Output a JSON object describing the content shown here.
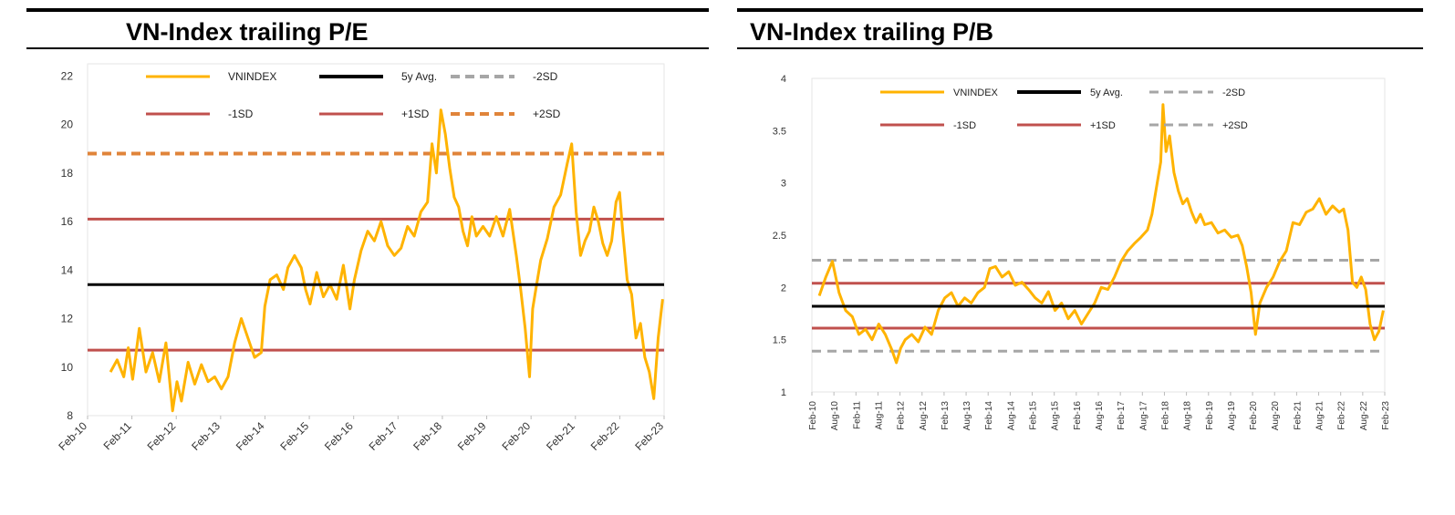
{
  "left_panel": {
    "title": "VN-Index trailing P/E"
  },
  "right_panel": {
    "title": "VN-Index trailing P/B"
  },
  "chart_data": [
    {
      "type": "line",
      "title": "VN-Index trailing P/E",
      "x_ticks": [
        "Feb-10",
        "Feb-11",
        "Feb-12",
        "Feb-13",
        "Feb-14",
        "Feb-15",
        "Feb-16",
        "Feb-17",
        "Feb-18",
        "Feb-19",
        "Feb-20",
        "Feb-21",
        "Feb-22",
        "Feb-23"
      ],
      "x_range": [
        2010.0833,
        2023.0833
      ],
      "y_ticks": [
        8,
        10,
        12,
        14,
        16,
        18,
        20,
        22
      ],
      "ylim": [
        8,
        22.5
      ],
      "legend": [
        "VNINDEX",
        "5y Avg.",
        "-2SD",
        "-1SD",
        "+1SD",
        "+2SD"
      ],
      "colors": {
        "vnindex": "#ffb300",
        "avg": "#000000",
        "sd1": "#c0504d",
        "minus2sd": "#a6a6a6",
        "plus2sd": "#e0843a"
      },
      "reference_lines": {
        "avg": 13.4,
        "minus1sd": 10.7,
        "plus1sd": 16.1,
        "plus2sd": 18.8
      },
      "series": [
        {
          "name": "VNINDEX",
          "x": [
            2010.6,
            2010.75,
            2010.9,
            2011.0,
            2011.1,
            2011.25,
            2011.4,
            2011.55,
            2011.7,
            2011.85,
            2012.0,
            2012.1,
            2012.2,
            2012.35,
            2012.5,
            2012.65,
            2012.8,
            2012.95,
            2013.1,
            2013.25,
            2013.4,
            2013.55,
            2013.7,
            2013.85,
            2014.0,
            2014.08,
            2014.2,
            2014.35,
            2014.5,
            2014.6,
            2014.75,
            2014.9,
            2015.0,
            2015.1,
            2015.25,
            2015.4,
            2015.55,
            2015.7,
            2015.85,
            2016.0,
            2016.1,
            2016.25,
            2016.4,
            2016.55,
            2016.7,
            2016.85,
            2017.0,
            2017.15,
            2017.3,
            2017.45,
            2017.6,
            2017.75,
            2017.85,
            2017.95,
            2018.05,
            2018.15,
            2018.25,
            2018.35,
            2018.45,
            2018.55,
            2018.65,
            2018.75,
            2018.85,
            2019.0,
            2019.15,
            2019.3,
            2019.45,
            2019.6,
            2019.75,
            2019.85,
            2019.95,
            2020.05,
            2020.12,
            2020.2,
            2020.3,
            2020.45,
            2020.6,
            2020.75,
            2020.9,
            2021.0,
            2021.1,
            2021.2,
            2021.3,
            2021.4,
            2021.5,
            2021.6,
            2021.7,
            2021.8,
            2021.9,
            2022.0,
            2022.08,
            2022.15,
            2022.25,
            2022.35,
            2022.45,
            2022.55,
            2022.65,
            2022.75,
            2022.85,
            2022.95,
            2023.05
          ],
          "y": [
            9.8,
            10.3,
            9.6,
            10.8,
            9.5,
            11.6,
            9.8,
            10.6,
            9.4,
            11.0,
            8.2,
            9.4,
            8.6,
            10.2,
            9.3,
            10.1,
            9.4,
            9.6,
            9.1,
            9.6,
            11.0,
            12.0,
            11.2,
            10.4,
            10.6,
            12.5,
            13.6,
            13.8,
            13.2,
            14.1,
            14.6,
            14.1,
            13.2,
            12.6,
            13.9,
            12.9,
            13.4,
            12.8,
            14.2,
            12.4,
            13.6,
            14.8,
            15.6,
            15.2,
            16.0,
            15.0,
            14.6,
            14.9,
            15.8,
            15.4,
            16.4,
            16.8,
            19.2,
            18.0,
            20.6,
            19.6,
            18.2,
            17.0,
            16.6,
            15.6,
            15.0,
            16.2,
            15.4,
            15.8,
            15.4,
            16.2,
            15.4,
            16.5,
            14.6,
            13.2,
            11.6,
            9.6,
            12.4,
            13.3,
            14.4,
            15.3,
            16.6,
            17.1,
            18.4,
            19.2,
            16.4,
            14.6,
            15.2,
            15.6,
            16.6,
            16.0,
            15.1,
            14.6,
            15.2,
            16.8,
            17.2,
            15.6,
            13.6,
            13.0,
            11.2,
            11.8,
            10.4,
            9.8,
            8.7,
            11.2,
            12.8
          ]
        }
      ]
    },
    {
      "type": "line",
      "title": "VN-Index trailing P/B",
      "x_ticks": [
        "Feb-10",
        "Aug-10",
        "Feb-11",
        "Aug-11",
        "Feb-12",
        "Aug-12",
        "Feb-13",
        "Aug-13",
        "Feb-14",
        "Aug-14",
        "Feb-15",
        "Aug-15",
        "Feb-16",
        "Aug-16",
        "Feb-17",
        "Aug-17",
        "Feb-18",
        "Aug-18",
        "Feb-19",
        "Aug-19",
        "Feb-20",
        "Aug-20",
        "Feb-21",
        "Aug-21",
        "Feb-22",
        "Aug-22",
        "Feb-23"
      ],
      "x_range": [
        2010.0833,
        2023.0833
      ],
      "y_ticks": [
        "1",
        "1.5",
        "2",
        "2.5",
        "3",
        "3.5",
        "4"
      ],
      "y_tick_values": [
        1,
        1.5,
        2,
        2.5,
        3,
        3.5,
        4
      ],
      "ylim": [
        1,
        4
      ],
      "legend": [
        "VNINDEX",
        "5y Avg.",
        "-2SD",
        "-1SD",
        "+1SD",
        "+2SD"
      ],
      "colors": {
        "vnindex": "#ffb300",
        "avg": "#000000",
        "sd1": "#c0504d",
        "sd2": "#a6a6a6"
      },
      "reference_lines": {
        "avg": 1.82,
        "minus1sd": 1.61,
        "plus1sd": 2.04,
        "minus2sd": 1.39,
        "plus2sd": 2.26
      },
      "series": [
        {
          "name": "VNINDEX",
          "x": [
            2010.25,
            2010.4,
            2010.55,
            2010.7,
            2010.85,
            2011.0,
            2011.15,
            2011.3,
            2011.45,
            2011.6,
            2011.75,
            2011.9,
            2012.0,
            2012.1,
            2012.2,
            2012.35,
            2012.5,
            2012.65,
            2012.8,
            2012.95,
            2013.1,
            2013.25,
            2013.4,
            2013.55,
            2013.7,
            2013.85,
            2014.0,
            2014.12,
            2014.25,
            2014.4,
            2014.55,
            2014.7,
            2014.85,
            2015.0,
            2015.15,
            2015.3,
            2015.45,
            2015.6,
            2015.75,
            2015.9,
            2016.05,
            2016.2,
            2016.35,
            2016.5,
            2016.65,
            2016.8,
            2016.95,
            2017.1,
            2017.25,
            2017.4,
            2017.55,
            2017.7,
            2017.8,
            2017.9,
            2018.0,
            2018.05,
            2018.12,
            2018.2,
            2018.3,
            2018.4,
            2018.5,
            2018.6,
            2018.7,
            2018.8,
            2018.9,
            2019.0,
            2019.15,
            2019.3,
            2019.45,
            2019.6,
            2019.75,
            2019.85,
            2019.95,
            2020.05,
            2020.15,
            2020.25,
            2020.4,
            2020.55,
            2020.7,
            2020.85,
            2021.0,
            2021.15,
            2021.3,
            2021.45,
            2021.6,
            2021.75,
            2021.9,
            2022.05,
            2022.15,
            2022.25,
            2022.35,
            2022.45,
            2022.55,
            2022.65,
            2022.75,
            2022.85,
            2022.95,
            2023.05
          ],
          "y": [
            1.92,
            2.1,
            2.25,
            1.95,
            1.78,
            1.72,
            1.55,
            1.6,
            1.5,
            1.65,
            1.55,
            1.4,
            1.28,
            1.42,
            1.5,
            1.55,
            1.48,
            1.62,
            1.55,
            1.78,
            1.9,
            1.95,
            1.82,
            1.9,
            1.85,
            1.95,
            2.0,
            2.18,
            2.2,
            2.1,
            2.15,
            2.02,
            2.05,
            1.98,
            1.9,
            1.85,
            1.96,
            1.78,
            1.85,
            1.7,
            1.78,
            1.65,
            1.75,
            1.85,
            2.0,
            1.98,
            2.1,
            2.25,
            2.35,
            2.42,
            2.48,
            2.55,
            2.7,
            2.95,
            3.2,
            3.75,
            3.3,
            3.45,
            3.1,
            2.92,
            2.8,
            2.85,
            2.72,
            2.62,
            2.7,
            2.6,
            2.62,
            2.52,
            2.55,
            2.48,
            2.5,
            2.4,
            2.2,
            1.95,
            1.55,
            1.85,
            2.0,
            2.1,
            2.25,
            2.35,
            2.62,
            2.6,
            2.72,
            2.75,
            2.85,
            2.7,
            2.78,
            2.72,
            2.75,
            2.55,
            2.05,
            2.0,
            2.1,
            1.98,
            1.65,
            1.5,
            1.58,
            1.78
          ]
        }
      ]
    }
  ]
}
